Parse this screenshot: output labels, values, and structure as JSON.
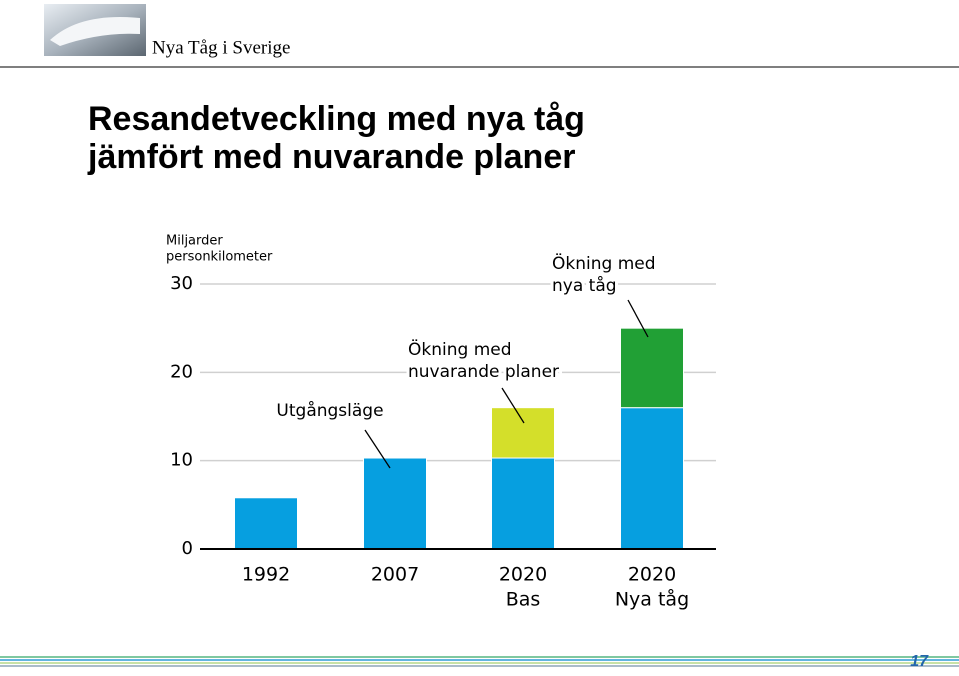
{
  "header": {
    "title": "Nya Tåg i Sverige"
  },
  "chart_data": {
    "type": "bar",
    "title": [
      "Resandetveckling med nya tåg",
      "jämfört med nuvarande planer"
    ],
    "y_label": [
      "Miljarder",
      "personkilometer"
    ],
    "categories": [
      [
        "1992"
      ],
      [
        "2007"
      ],
      [
        "2020",
        "Bas"
      ],
      [
        "2020",
        "Nya tåg"
      ]
    ],
    "series": [
      {
        "color": "#069fe0",
        "values": [
          5.8,
          10.3,
          10.3,
          16.0
        ]
      },
      {
        "color": "#d4df2a",
        "values": [
          null,
          null,
          5.7,
          null
        ]
      },
      {
        "color": "#21a035",
        "values": [
          null,
          null,
          null,
          9.0
        ]
      }
    ],
    "annotations": [
      {
        "lines": [
          "Utgångsläge"
        ]
      },
      {
        "lines": [
          "Ökning med",
          "nuvarande planer"
        ]
      },
      {
        "lines": [
          "Ökning med",
          "nya tåg"
        ]
      }
    ],
    "ylim": [
      0,
      30
    ],
    "yticks": [
      0,
      10,
      20,
      30
    ],
    "grid": true
  },
  "footer": {
    "page": "17"
  }
}
